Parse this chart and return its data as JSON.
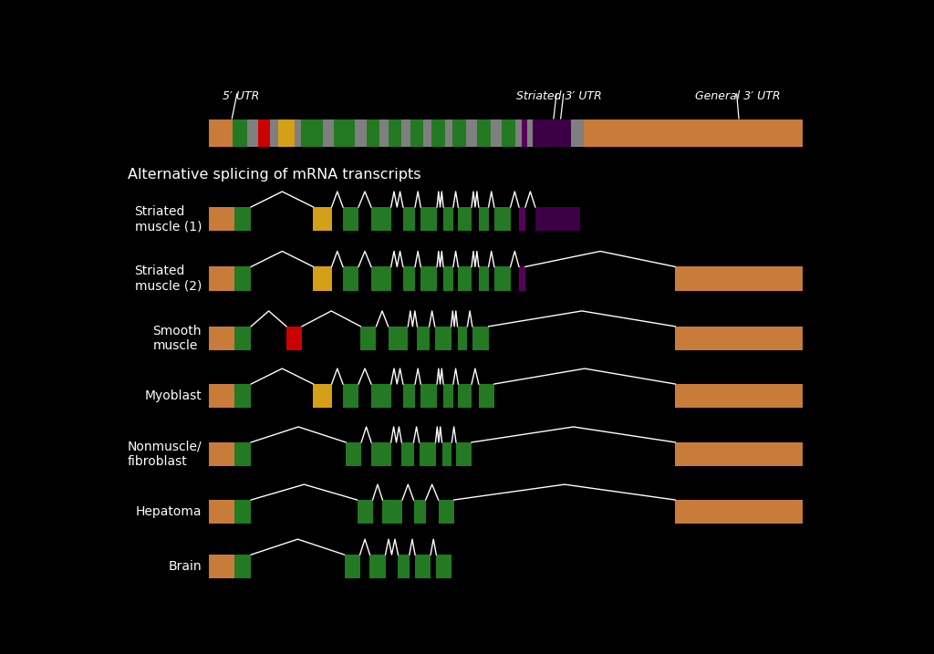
{
  "bg": "#000000",
  "white": "#ffffff",
  "orange": "#C97B3A",
  "green": "#237A23",
  "gray": "#7F7F7F",
  "red": "#CC0000",
  "yellow": "#D4A017",
  "purple": "#3D0047",
  "spurple": "#5A005A",
  "title": "Alternative splicing of mRNA transcripts",
  "ann_5utr": "5′ UTR",
  "ann_s3utr": "Striated 3′ UTR",
  "ann_g3utr": "General 3′ UTR",
  "row_names": [
    "Striated\nmuscle (1)",
    "Striated\nmuscle (2)",
    "Smooth\nmuscle",
    "Myoblast",
    "Nonmuscle/\nfibroblast",
    "Hepatoma",
    "Brain"
  ]
}
